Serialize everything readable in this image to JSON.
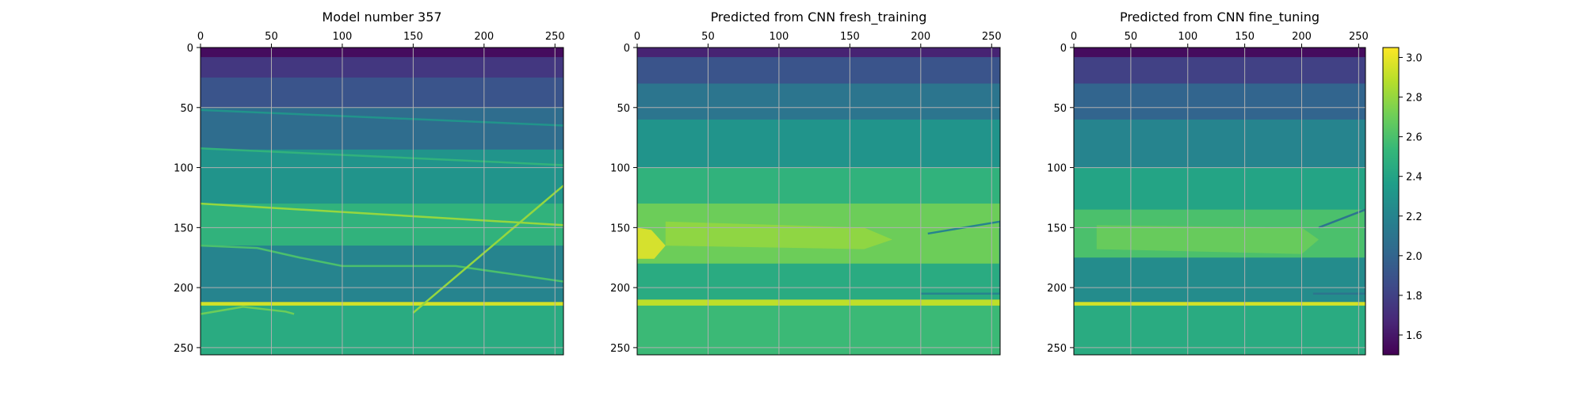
{
  "figure": {
    "background": "#ffffff",
    "colormap": "viridis",
    "grid_color": "#b0b0b0"
  },
  "chart_data": [
    {
      "type": "heatmap",
      "title": "Model number 357",
      "x_ticks": [
        0,
        50,
        100,
        150,
        200,
        250
      ],
      "y_ticks": [
        0,
        50,
        100,
        150,
        200,
        250
      ],
      "xlim": [
        0,
        256
      ],
      "ylim": [
        256,
        0
      ],
      "x_axis_position": "top",
      "grid": true,
      "value_range": [
        1.5,
        3.05
      ],
      "background_layers": [
        {
          "depth": [
            0,
            8
          ],
          "value": 1.55
        },
        {
          "depth": [
            8,
            25
          ],
          "value": 1.75
        },
        {
          "depth": [
            25,
            50
          ],
          "value": 1.9
        },
        {
          "depth": [
            50,
            85
          ],
          "value": 2.05
        },
        {
          "depth": [
            85,
            130
          ],
          "value": 2.3
        },
        {
          "depth": [
            130,
            165
          ],
          "value": 2.5
        },
        {
          "depth": [
            165,
            212
          ],
          "value": 2.2
        },
        {
          "depth": [
            212,
            215
          ],
          "value": 2.95
        },
        {
          "depth": [
            215,
            256
          ],
          "value": 2.45
        }
      ],
      "features": [
        {
          "value": 2.3,
          "points": [
            [
              0,
              52
            ],
            [
              256,
              65
            ]
          ]
        },
        {
          "value": 2.5,
          "points": [
            [
              0,
              84
            ],
            [
              256,
              98
            ]
          ]
        },
        {
          "value": 2.8,
          "points": [
            [
              0,
              130
            ],
            [
              256,
              148
            ]
          ]
        },
        {
          "value": 2.6,
          "points": [
            [
              0,
              165
            ],
            [
              40,
              167
            ],
            [
              70,
              175
            ],
            [
              100,
              182
            ],
            [
              180,
              182
            ],
            [
              256,
              195
            ]
          ]
        },
        {
          "value": 2.8,
          "points": [
            [
              150,
              221
            ],
            [
              256,
              115
            ]
          ]
        },
        {
          "value": 2.7,
          "points": [
            [
              0,
              222
            ],
            [
              30,
              216
            ],
            [
              60,
              220
            ],
            [
              66,
              222
            ]
          ]
        }
      ]
    },
    {
      "type": "heatmap",
      "title": "Predicted from CNN fresh_training",
      "x_ticks": [
        0,
        50,
        100,
        150,
        200,
        250
      ],
      "y_ticks": [
        0,
        50,
        100,
        150,
        200,
        250
      ],
      "xlim": [
        0,
        256
      ],
      "ylim": [
        256,
        0
      ],
      "x_axis_position": "top",
      "grid": true,
      "value_range": [
        1.5,
        3.05
      ],
      "background_layers": [
        {
          "depth": [
            0,
            8
          ],
          "value": 1.65
        },
        {
          "depth": [
            8,
            30
          ],
          "value": 1.9
        },
        {
          "depth": [
            30,
            60
          ],
          "value": 2.1
        },
        {
          "depth": [
            60,
            100
          ],
          "value": 2.3
        },
        {
          "depth": [
            100,
            130
          ],
          "value": 2.5
        },
        {
          "depth": [
            130,
            180
          ],
          "value": 2.7
        },
        {
          "depth": [
            180,
            210
          ],
          "value": 2.45
        },
        {
          "depth": [
            210,
            215
          ],
          "value": 2.9
        },
        {
          "depth": [
            215,
            256
          ],
          "value": 2.55
        }
      ],
      "features": [
        {
          "value": 3.0,
          "points": [
            [
              0,
              150
            ],
            [
              10,
              152
            ],
            [
              20,
              165
            ],
            [
              12,
              176
            ],
            [
              0,
              176
            ]
          ]
        },
        {
          "value": 2.8,
          "points": [
            [
              20,
              145
            ],
            [
              160,
              150
            ],
            [
              180,
              160
            ],
            [
              160,
              168
            ],
            [
              20,
              165
            ]
          ]
        },
        {
          "value": 2.2,
          "points": [
            [
              205,
              155
            ],
            [
              256,
              145
            ],
            [
              256,
              205
            ],
            [
              200,
              205
            ]
          ]
        }
      ]
    },
    {
      "type": "heatmap",
      "title": "Predicted from CNN fine_tuning",
      "x_ticks": [
        0,
        50,
        100,
        150,
        200,
        250
      ],
      "y_ticks": [
        0,
        50,
        100,
        150,
        200,
        250
      ],
      "xlim": [
        0,
        256
      ],
      "ylim": [
        256,
        0
      ],
      "x_axis_position": "top",
      "grid": true,
      "value_range": [
        1.5,
        3.05
      ],
      "background_layers": [
        {
          "depth": [
            0,
            8
          ],
          "value": 1.55
        },
        {
          "depth": [
            8,
            30
          ],
          "value": 1.8
        },
        {
          "depth": [
            30,
            60
          ],
          "value": 2.0
        },
        {
          "depth": [
            60,
            100
          ],
          "value": 2.2
        },
        {
          "depth": [
            100,
            135
          ],
          "value": 2.4
        },
        {
          "depth": [
            135,
            175
          ],
          "value": 2.6
        },
        {
          "depth": [
            175,
            212
          ],
          "value": 2.25
        },
        {
          "depth": [
            212,
            215
          ],
          "value": 2.95
        },
        {
          "depth": [
            215,
            256
          ],
          "value": 2.45
        }
      ],
      "features": [
        {
          "value": 2.7,
          "points": [
            [
              20,
              148
            ],
            [
              200,
              150
            ],
            [
              215,
              160
            ],
            [
              200,
              172
            ],
            [
              20,
              168
            ]
          ]
        },
        {
          "value": 2.1,
          "points": [
            [
              215,
              150
            ],
            [
              256,
              135
            ],
            [
              256,
              205
            ],
            [
              210,
              205
            ]
          ]
        }
      ]
    }
  ],
  "colorbar": {
    "ticks": [
      1.6,
      1.8,
      2.0,
      2.2,
      2.4,
      2.6,
      2.8,
      3.0
    ],
    "range": [
      1.5,
      3.05
    ]
  }
}
